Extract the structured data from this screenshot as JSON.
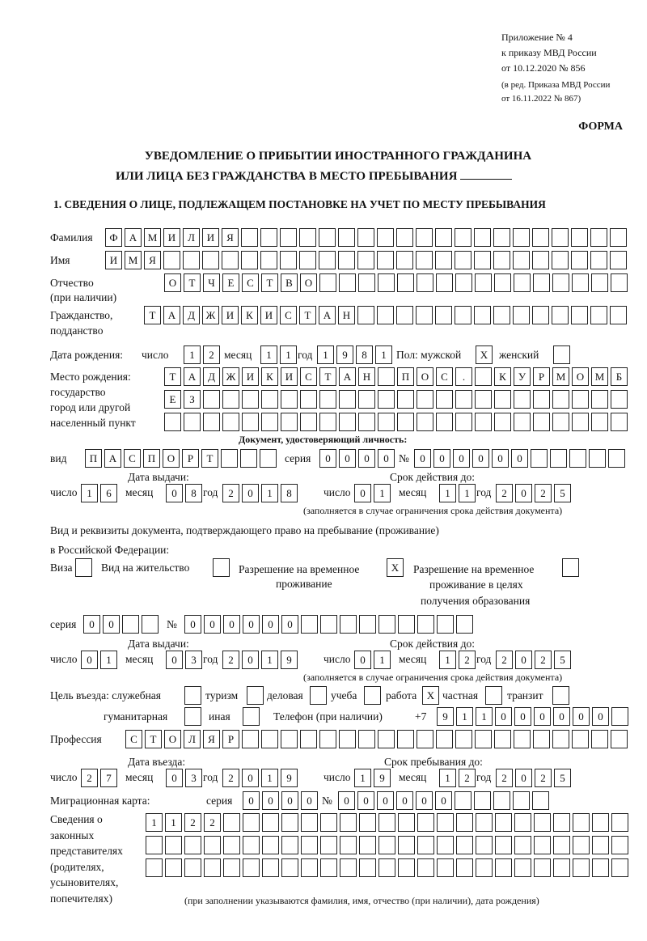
{
  "header": {
    "appendix": [
      "Приложение № 4",
      "к приказу МВД России",
      "от 10.12.2020 № 856"
    ],
    "revision": [
      "(в ред. Приказа МВД России",
      "от 16.11.2022 № 867)"
    ],
    "form_label": "ФОРМА",
    "title_line1": "УВЕДОМЛЕНИЕ О ПРИБЫТИИ ИНОСТРАННОГО ГРАЖДАНИНА",
    "title_line2": "ИЛИ ЛИЦА БЕЗ ГРАЖДАНСТВА В МЕСТО ПРЕБЫВАНИЯ",
    "section1": "1. СВЕДЕНИЯ О ЛИЦЕ, ПОДЛЕЖАЩЕМ ПОСТАНОВКЕ НА УЧЕТ ПО МЕСТУ ПРЕБЫВАНИЯ"
  },
  "labels": {
    "surname": "Фамилия",
    "name": "Имя",
    "patronymic": "Отчество",
    "patronymic2": "(при наличии)",
    "citizenship": "Гражданство,",
    "citizenship2": "подданство",
    "dob": "Дата рождения:",
    "day": "число",
    "month": "месяц",
    "year": "год",
    "sex": "Пол: мужской",
    "female": "женский",
    "pob1": "Место рождения:",
    "pob2": "государство",
    "pob3": "город или другой",
    "pob4": "населенный пункт",
    "id_doc": "Документ, удостоверяющий личность:",
    "kind": "вид",
    "series": "серия",
    "number": "№",
    "issue_date": "Дата выдачи:",
    "valid_until": "Срок действия до:",
    "validity_note": "(заполняется в случае ограничения срока действия документа)",
    "stay_doc1": "Вид и реквизиты документа, подтверждающего право на пребывание (проживание)",
    "stay_doc2": "в Российской Федерации:",
    "visa": "Виза",
    "residence": "Вид на жительство",
    "trp1": "Разрешение на временное",
    "trp2": "проживание",
    "trp_edu1": "Разрешение на временное",
    "trp_edu2": "проживание в целях",
    "trp_edu3": "получения образования",
    "purpose": "Цель въезда: служебная",
    "tourism": "туризм",
    "business": "деловая",
    "study": "учеба",
    "work": "работа",
    "private": "частная",
    "transit": "транзит",
    "humanitarian": "гуманитарная",
    "other": "иная",
    "phone": "Телефон (при наличии)",
    "phone_prefix": "+7",
    "profession": "Профессия",
    "entry_date": "Дата въезда:",
    "stay_until": "Срок пребывания до:",
    "migration_card": "Миграционная карта:",
    "guardians": [
      "Сведения о",
      "законных",
      "представителях",
      "(родителях,",
      "усыновителях,",
      "попечителях)"
    ],
    "guardians_note": "(при заполнении указываются фамилия, имя, отчество (при наличии), дата рождения)"
  },
  "fields": {
    "surname": [
      "Ф",
      "А",
      "М",
      "И",
      "Л",
      "И",
      "Я"
    ],
    "name": [
      "И",
      "М",
      "Я"
    ],
    "patronymic": [
      "О",
      "Т",
      "Ч",
      "Е",
      "С",
      "Т",
      "В",
      "О"
    ],
    "citizenship": [
      "Т",
      "А",
      "Д",
      "Ж",
      "И",
      "К",
      "И",
      "С",
      "Т",
      "А",
      "Н"
    ],
    "dob_day": [
      "1",
      "2"
    ],
    "dob_month": [
      "1",
      "1"
    ],
    "dob_year": [
      "1",
      "9",
      "8",
      "1"
    ],
    "sex_male": "X",
    "sex_female": "",
    "pob_row1": [
      "Т",
      "А",
      "Д",
      "Ж",
      "И",
      "К",
      "И",
      "С",
      "Т",
      "А",
      "Н",
      "",
      " П",
      "О",
      "С",
      ".",
      "",
      "К",
      "У",
      "Р",
      "М",
      "О",
      "М",
      "Б"
    ],
    "pob_row2": [
      "Е",
      "З"
    ],
    "pob_row3": [],
    "id_kind": [
      "П",
      "А",
      "С",
      "П",
      "О",
      "Р",
      "Т"
    ],
    "id_series": [
      "0",
      "0",
      "0",
      "0"
    ],
    "id_number": [
      "0",
      "0",
      "0",
      "0",
      "0",
      "0"
    ],
    "id_issue": {
      "day": [
        "1",
        "6"
      ],
      "month": [
        "0",
        "8"
      ],
      "year": [
        "2",
        "0",
        "1",
        "8"
      ]
    },
    "id_valid": {
      "day": [
        "0",
        "1"
      ],
      "month": [
        "1",
        "1"
      ],
      "year": [
        "2",
        "0",
        "2",
        "5"
      ]
    },
    "stay_doc_type": {
      "visa": "",
      "residence": "",
      "trp": "X",
      "trp_edu": ""
    },
    "stay_series": [
      "0",
      "0"
    ],
    "stay_number": [
      "0",
      "0",
      "0",
      "0",
      "0",
      "0"
    ],
    "stay_issue": {
      "day": [
        "0",
        "1"
      ],
      "month": [
        "0",
        "3"
      ],
      "year": [
        "2",
        "0",
        "1",
        "9"
      ]
    },
    "stay_valid": {
      "day": [
        "0",
        "1"
      ],
      "month": [
        "1",
        "2"
      ],
      "year": [
        "2",
        "0",
        "2",
        "5"
      ]
    },
    "purpose": {
      "service": "",
      "tourism": "",
      "business": "",
      "study": "",
      "work": "X",
      "private": "",
      "transit": "",
      "humanitarian": "",
      "other": ""
    },
    "phone": [
      "9",
      "1",
      "1",
      "0",
      "0",
      "0",
      "0",
      "0",
      "0"
    ],
    "profession": [
      "С",
      "Т",
      "О",
      "Л",
      "Я",
      "Р"
    ],
    "entry": {
      "day": [
        "2",
        "7"
      ],
      "month": [
        "0",
        "3"
      ],
      "year": [
        "2",
        "0",
        "1",
        "9"
      ]
    },
    "stay_until": {
      "day": [
        "1",
        "9"
      ],
      "month": [
        "1",
        "2"
      ],
      "year": [
        "2",
        "0",
        "2",
        "5"
      ]
    },
    "mc_series": [
      "0",
      "0",
      "0",
      "0"
    ],
    "mc_number": [
      "0",
      "0",
      "0",
      "0",
      "0",
      "0"
    ],
    "guardians_row1": [
      "1",
      "1",
      "2",
      "2"
    ],
    "guardians_row2": [],
    "guardians_row3": []
  }
}
